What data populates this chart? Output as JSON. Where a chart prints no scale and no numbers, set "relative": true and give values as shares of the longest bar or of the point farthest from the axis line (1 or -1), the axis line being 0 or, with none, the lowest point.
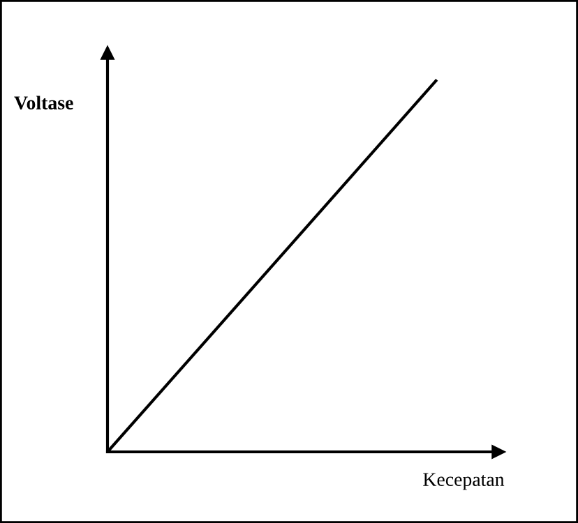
{
  "chart_data": {
    "type": "line",
    "relative": true,
    "xlabel": "Kecepatan",
    "ylabel": "Voltase",
    "categories": [
      null,
      null
    ],
    "series": [
      {
        "color": "#000000",
        "values": [
          0,
          1
        ]
      }
    ],
    "marker": "none",
    "line_style": "solid"
  }
}
